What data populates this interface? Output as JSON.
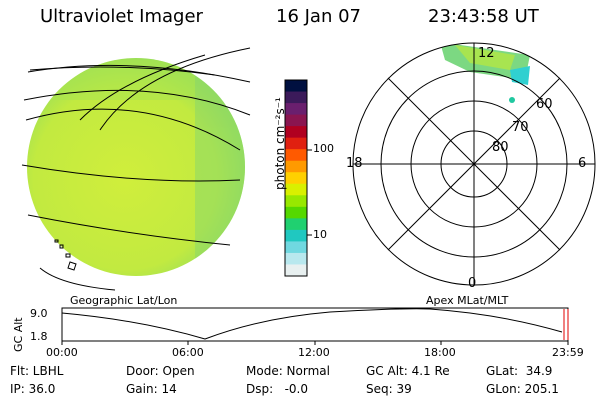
{
  "header": {
    "instrument": "Ultraviolet Imager",
    "date": "16 Jan 07",
    "time": "23:43:58 UT"
  },
  "colorbar": {
    "label": "photon cm⁻²s⁻¹",
    "ticks": [
      "100",
      "10"
    ],
    "colors": [
      "#001040",
      "#3b1a5a",
      "#6a1f6e",
      "#8a1550",
      "#b00020",
      "#e02010",
      "#ff5a00",
      "#ff9a00",
      "#ffd000",
      "#d9f000",
      "#98e800",
      "#55d800",
      "#20d070",
      "#20c8c0",
      "#70d8e0",
      "#b8e8ee",
      "#e8f0f0"
    ]
  },
  "geo_panel": {
    "label": "Geographic Lat/Lon",
    "disk_color": "#c8ec3a",
    "disk_edge_color": "#78d878"
  },
  "polar_panel": {
    "label": "Apex MLat/MLT",
    "mlt_labels": {
      "top": "12",
      "left": "18",
      "right": "6",
      "bottom": "0"
    },
    "lat_labels": [
      "60",
      "70",
      "80"
    ]
  },
  "altitude_plot": {
    "ylabel": "GC Alt",
    "yticks": [
      "9.0",
      "1.8"
    ],
    "xticks": [
      "00:00",
      "06:00",
      "12:00",
      "18:00",
      "23:59"
    ],
    "marker_color": "#e00000"
  },
  "info": {
    "filter": "Flt: LBHL",
    "ip": "IP: 36.0",
    "door": "Door: Open",
    "gain": "Gain: 14",
    "mode": "Mode: Normal",
    "dsp": "Dsp:   -0.0",
    "gc_alt": "GC Alt: 4.1 Re",
    "seq": "Seq: 39",
    "glat": "GLat:  34.9",
    "glon": "GLon: 205.1"
  }
}
